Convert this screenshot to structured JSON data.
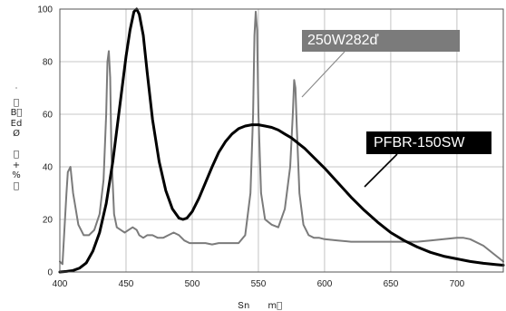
{
  "chart_data": {
    "type": "line",
    "xlabel": "Տn　　m\u0000",
    "ylabel": "˙\n\u0000\nB\u0000\nEd\nØ\n\n\u0000\n+\n%\n\u0000",
    "xlim": [
      400,
      735
    ],
    "ylim": [
      0,
      100
    ],
    "x_ticks": [
      "400",
      "450",
      "500",
      "550",
      "600",
      "650",
      "700"
    ],
    "y_ticks": [
      "0",
      "20",
      "40",
      "60",
      "80",
      "100"
    ],
    "grid": true,
    "series": [
      {
        "name": "250W282ď",
        "color": "#7b7b7b",
        "x": [
          400,
          402,
          405,
          406,
          408,
          410,
          414,
          418,
          422,
          426,
          430,
          433,
          435,
          436,
          437,
          438,
          439,
          441,
          443,
          446,
          449,
          452,
          455,
          458,
          460,
          463,
          466,
          470,
          474,
          478,
          482,
          486,
          490,
          494,
          498,
          502,
          506,
          510,
          515,
          520,
          525,
          530,
          535,
          540,
          544,
          546,
          547,
          548,
          549,
          550,
          552,
          555,
          560,
          565,
          570,
          574,
          576,
          577,
          578,
          579,
          581,
          584,
          588,
          592,
          596,
          600,
          610,
          620,
          630,
          640,
          650,
          660,
          670,
          680,
          690,
          700,
          705,
          710,
          720,
          730,
          735
        ],
        "y": [
          4,
          3,
          30,
          38,
          40,
          30,
          18,
          14,
          14,
          16,
          22,
          35,
          60,
          80,
          84,
          74,
          45,
          22,
          17,
          16,
          15,
          16,
          17,
          16,
          14,
          13,
          14,
          14,
          13,
          13,
          14,
          15,
          14,
          12,
          11,
          11,
          11,
          11,
          10.5,
          11,
          11,
          11,
          11,
          14,
          30,
          60,
          90,
          99,
          92,
          60,
          30,
          20,
          18,
          17,
          24,
          40,
          60,
          73,
          70,
          55,
          30,
          18,
          14,
          13,
          13,
          12.5,
          12,
          11.5,
          11.5,
          11.5,
          11.5,
          11.5,
          11.5,
          12,
          12.5,
          13,
          13,
          12.5,
          10,
          6,
          4
        ]
      },
      {
        "name": "PFBR-150SW",
        "color": "#000000",
        "x": [
          400,
          405,
          410,
          415,
          420,
          425,
          430,
          435,
          440,
          445,
          450,
          453,
          456,
          458,
          460,
          463,
          466,
          470,
          475,
          480,
          485,
          490,
          493,
          496,
          500,
          505,
          510,
          515,
          520,
          525,
          530,
          535,
          540,
          545,
          550,
          555,
          560,
          565,
          570,
          575,
          580,
          585,
          590,
          595,
          600,
          610,
          620,
          630,
          640,
          650,
          660,
          670,
          680,
          690,
          700,
          710,
          720,
          730,
          735
        ],
        "y": [
          0,
          0.2,
          0.6,
          1.5,
          3.5,
          8,
          15,
          26,
          42,
          62,
          82,
          92,
          99,
          100,
          98,
          90,
          76,
          58,
          42,
          31,
          24,
          20.5,
          20,
          20.5,
          23,
          28,
          34,
          40,
          45.5,
          49.5,
          52.5,
          54.5,
          55.5,
          56,
          56,
          55.5,
          55,
          54,
          52.5,
          51,
          49,
          47,
          44.5,
          42,
          39.5,
          34,
          28.5,
          23.5,
          19,
          15,
          12,
          9.5,
          7.5,
          6,
          5,
          4,
          3.3,
          2.8,
          2.6
        ]
      }
    ]
  }
}
